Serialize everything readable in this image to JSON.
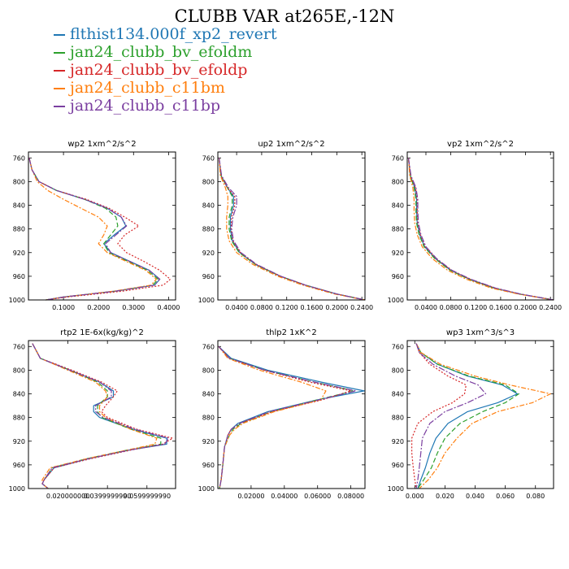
{
  "title": "CLUBB VAR at265E,-12N",
  "legend": [
    {
      "name": "flthist134.000f_xp2_revert",
      "color": "#1f77b4",
      "dash": ""
    },
    {
      "name": "jan24_clubb_bv_efoldm",
      "color": "#2ca02c",
      "dash": "6,3"
    },
    {
      "name": "jan24_clubb_bv_efoldp",
      "color": "#d62728",
      "dash": "2,2"
    },
    {
      "name": "jan24_clubb_c11bm",
      "color": "#ff7f0e",
      "dash": "6,2,2,2"
    },
    {
      "name": "jan24_clubb_c11bp",
      "color": "#7b3fa0",
      "dash": "8,2,2,2"
    }
  ],
  "chart_data": [
    {
      "type": "line",
      "title": "wp2   1xm^2/s^2",
      "xlim": [
        0,
        0.42
      ],
      "ylim": [
        750,
        1000
      ],
      "y_inverted": true,
      "xticks": [
        0.1,
        0.2,
        0.3,
        0.4
      ],
      "xtick_labels": [
        "0.1000",
        "0.2000",
        "0.3000",
        "0.4000"
      ],
      "yticks": [
        760,
        800,
        840,
        880,
        920,
        960,
        1000
      ],
      "y": [
        760,
        780,
        800,
        815,
        830,
        845,
        860,
        875,
        890,
        905,
        920,
        935,
        950,
        965,
        975,
        985,
        995,
        1000
      ],
      "series": [
        {
          "name": "flthist134.000f_xp2_revert",
          "values": [
            0.002,
            0.01,
            0.03,
            0.08,
            0.16,
            0.225,
            0.265,
            0.278,
            0.245,
            0.215,
            0.235,
            0.29,
            0.345,
            0.375,
            0.36,
            0.25,
            0.1,
            0.05
          ]
        },
        {
          "name": "jan24_clubb_bv_efoldm",
          "values": [
            0.002,
            0.01,
            0.03,
            0.08,
            0.16,
            0.22,
            0.25,
            0.255,
            0.235,
            0.215,
            0.23,
            0.285,
            0.34,
            0.37,
            0.355,
            0.25,
            0.1,
            0.05
          ]
        },
        {
          "name": "jan24_clubb_bv_efoldp",
          "values": [
            0.002,
            0.01,
            0.03,
            0.08,
            0.165,
            0.23,
            0.275,
            0.315,
            0.275,
            0.255,
            0.28,
            0.33,
            0.375,
            0.405,
            0.385,
            0.27,
            0.11,
            0.05
          ]
        },
        {
          "name": "jan24_clubb_c11bm",
          "values": [
            0.002,
            0.01,
            0.025,
            0.055,
            0.1,
            0.15,
            0.2,
            0.225,
            0.215,
            0.2,
            0.225,
            0.28,
            0.335,
            0.365,
            0.35,
            0.245,
            0.1,
            0.05
          ]
        },
        {
          "name": "jan24_clubb_c11bp",
          "values": [
            0.002,
            0.01,
            0.03,
            0.08,
            0.16,
            0.225,
            0.265,
            0.28,
            0.25,
            0.22,
            0.235,
            0.29,
            0.345,
            0.375,
            0.36,
            0.25,
            0.1,
            0.05
          ]
        }
      ]
    },
    {
      "type": "line",
      "title": "up2   1xm^2/s^2",
      "xlim": [
        0.01,
        0.245
      ],
      "ylim": [
        750,
        1000
      ],
      "y_inverted": true,
      "xticks": [
        0.04,
        0.08,
        0.12,
        0.16,
        0.2,
        0.24
      ],
      "xtick_labels": [
        "0.0400",
        "0.0800",
        "0.1200",
        "0.1600",
        "0.2000",
        "0.2400"
      ],
      "yticks": [
        760,
        800,
        840,
        880,
        920,
        960,
        1000
      ],
      "y": [
        760,
        790,
        810,
        825,
        840,
        860,
        880,
        900,
        920,
        940,
        960,
        975,
        990,
        1000
      ],
      "series": [
        {
          "name": "flthist134.000f_xp2_revert",
          "values": [
            0.012,
            0.015,
            0.025,
            0.035,
            0.035,
            0.03,
            0.03,
            0.033,
            0.045,
            0.07,
            0.11,
            0.15,
            0.2,
            0.245
          ]
        },
        {
          "name": "jan24_clubb_bv_efoldm",
          "values": [
            0.012,
            0.015,
            0.025,
            0.033,
            0.033,
            0.028,
            0.028,
            0.032,
            0.044,
            0.07,
            0.11,
            0.15,
            0.2,
            0.245
          ]
        },
        {
          "name": "jan24_clubb_bv_efoldp",
          "values": [
            0.012,
            0.015,
            0.025,
            0.037,
            0.037,
            0.032,
            0.031,
            0.034,
            0.046,
            0.071,
            0.11,
            0.15,
            0.2,
            0.245
          ]
        },
        {
          "name": "jan24_clubb_c11bm",
          "values": [
            0.012,
            0.014,
            0.022,
            0.026,
            0.026,
            0.024,
            0.024,
            0.028,
            0.04,
            0.066,
            0.106,
            0.146,
            0.196,
            0.245
          ]
        },
        {
          "name": "jan24_clubb_c11bp",
          "values": [
            0.012,
            0.016,
            0.027,
            0.04,
            0.04,
            0.034,
            0.032,
            0.035,
            0.047,
            0.072,
            0.111,
            0.15,
            0.2,
            0.245
          ]
        }
      ]
    },
    {
      "type": "line",
      "title": "vp2   1xm^2/s^2",
      "xlim": [
        0.01,
        0.245
      ],
      "ylim": [
        750,
        1000
      ],
      "y_inverted": true,
      "xticks": [
        0.04,
        0.08,
        0.12,
        0.16,
        0.2,
        0.24
      ],
      "xtick_labels": [
        "0.0400",
        "0.0800",
        "0.1200",
        "0.1600",
        "0.2000",
        "0.2400"
      ],
      "yticks": [
        760,
        800,
        840,
        880,
        920,
        960,
        1000
      ],
      "y": [
        760,
        790,
        810,
        830,
        850,
        870,
        890,
        910,
        930,
        950,
        965,
        980,
        990,
        1000
      ],
      "series": [
        {
          "name": "flthist134.000f_xp2_revert",
          "values": [
            0.012,
            0.015,
            0.022,
            0.025,
            0.025,
            0.026,
            0.03,
            0.038,
            0.055,
            0.08,
            0.11,
            0.15,
            0.19,
            0.245
          ]
        },
        {
          "name": "jan24_clubb_bv_efoldm",
          "values": [
            0.012,
            0.015,
            0.021,
            0.024,
            0.024,
            0.025,
            0.029,
            0.037,
            0.054,
            0.079,
            0.109,
            0.149,
            0.19,
            0.245
          ]
        },
        {
          "name": "jan24_clubb_bv_efoldp",
          "values": [
            0.012,
            0.015,
            0.023,
            0.026,
            0.026,
            0.027,
            0.031,
            0.039,
            0.056,
            0.081,
            0.111,
            0.151,
            0.19,
            0.245
          ]
        },
        {
          "name": "jan24_clubb_c11bm",
          "values": [
            0.012,
            0.014,
            0.019,
            0.021,
            0.021,
            0.022,
            0.026,
            0.034,
            0.05,
            0.075,
            0.105,
            0.145,
            0.188,
            0.245
          ]
        },
        {
          "name": "jan24_clubb_c11bp",
          "values": [
            0.012,
            0.016,
            0.024,
            0.027,
            0.027,
            0.028,
            0.032,
            0.04,
            0.057,
            0.082,
            0.112,
            0.152,
            0.192,
            0.245
          ]
        }
      ]
    },
    {
      "type": "line",
      "title": "rtp2   1E-6x(kg/kg)^2",
      "xlim": [
        0,
        0.0745
      ],
      "ylim": [
        750,
        1000
      ],
      "y_inverted": true,
      "xticks": [
        0.02,
        0.04,
        0.06
      ],
      "xtick_labels": [
        "0.020000000",
        "0.0399999990",
        "0.0599999990"
      ],
      "yticks": [
        760,
        800,
        840,
        880,
        920,
        960,
        1000
      ],
      "y": [
        755,
        780,
        800,
        820,
        835,
        845,
        860,
        870,
        880,
        900,
        915,
        925,
        935,
        950,
        965,
        985,
        992,
        1000
      ],
      "series": [
        {
          "name": "flthist134.000f_xp2_revert",
          "values": [
            0.002,
            0.006,
            0.021,
            0.036,
            0.043,
            0.043,
            0.033,
            0.033,
            0.036,
            0.053,
            0.07,
            0.07,
            0.051,
            0.03,
            0.013,
            0.008,
            0.007,
            0.01
          ]
        },
        {
          "name": "jan24_clubb_bv_efoldm",
          "values": [
            0.002,
            0.006,
            0.021,
            0.035,
            0.04,
            0.04,
            0.035,
            0.035,
            0.037,
            0.052,
            0.067,
            0.067,
            0.05,
            0.029,
            0.012,
            0.008,
            0.007,
            0.01
          ]
        },
        {
          "name": "jan24_clubb_bv_efoldp",
          "values": [
            0.002,
            0.006,
            0.022,
            0.037,
            0.045,
            0.043,
            0.039,
            0.037,
            0.04,
            0.055,
            0.073,
            0.068,
            0.052,
            0.031,
            0.013,
            0.008,
            0.007,
            0.01
          ]
        },
        {
          "name": "jan24_clubb_c11bm",
          "values": [
            0.002,
            0.006,
            0.02,
            0.034,
            0.039,
            0.04,
            0.036,
            0.036,
            0.039,
            0.052,
            0.065,
            0.064,
            0.05,
            0.029,
            0.011,
            0.007,
            0.007,
            0.01
          ]
        },
        {
          "name": "jan24_clubb_c11bp",
          "values": [
            0.002,
            0.006,
            0.021,
            0.036,
            0.042,
            0.042,
            0.034,
            0.034,
            0.038,
            0.054,
            0.071,
            0.069,
            0.051,
            0.03,
            0.012,
            0.008,
            0.007,
            0.01
          ]
        }
      ]
    },
    {
      "type": "line",
      "title": "thlp2   1xK^2",
      "xlim": [
        0,
        0.0885
      ],
      "ylim": [
        750,
        1000
      ],
      "y_inverted": true,
      "xticks": [
        0.02,
        0.04,
        0.06,
        0.08
      ],
      "xtick_labels": [
        "0.02000",
        "0.04000",
        "0.06000",
        "0.08000"
      ],
      "yticks": [
        760,
        800,
        840,
        880,
        920,
        960,
        1000
      ],
      "y": [
        760,
        780,
        800,
        820,
        835,
        850,
        870,
        890,
        900,
        910,
        930,
        960,
        985,
        1000
      ],
      "series": [
        {
          "name": "flthist134.000f_xp2_revert",
          "values": [
            0.0005,
            0.008,
            0.03,
            0.062,
            0.088,
            0.06,
            0.03,
            0.012,
            0.008,
            0.006,
            0.004,
            0.003,
            0.002,
            0.001
          ]
        },
        {
          "name": "jan24_clubb_bv_efoldm",
          "values": [
            0.0005,
            0.007,
            0.028,
            0.058,
            0.082,
            0.06,
            0.032,
            0.014,
            0.009,
            0.007,
            0.004,
            0.003,
            0.002,
            0.001
          ]
        },
        {
          "name": "jan24_clubb_bv_efoldp",
          "values": [
            0.0005,
            0.007,
            0.028,
            0.055,
            0.08,
            0.063,
            0.033,
            0.013,
            0.008,
            0.006,
            0.004,
            0.003,
            0.002,
            0.001
          ]
        },
        {
          "name": "jan24_clubb_c11bm",
          "values": [
            0.0005,
            0.006,
            0.025,
            0.05,
            0.065,
            0.062,
            0.034,
            0.015,
            0.01,
            0.007,
            0.004,
            0.003,
            0.002,
            0.001
          ]
        },
        {
          "name": "jan24_clubb_c11bp",
          "values": [
            0.0005,
            0.007,
            0.028,
            0.058,
            0.083,
            0.061,
            0.031,
            0.013,
            0.008,
            0.006,
            0.004,
            0.003,
            0.002,
            0.001
          ]
        }
      ]
    },
    {
      "type": "line",
      "title": "wp3   1xm^3/s^3",
      "xlim": [
        -0.005,
        0.092
      ],
      "ylim": [
        750,
        1000
      ],
      "y_inverted": true,
      "xticks": [
        0.0,
        0.02,
        0.04,
        0.06,
        0.08
      ],
      "xtick_labels": [
        "0.000",
        "0.020",
        "0.040",
        "0.060",
        "0.080"
      ],
      "yticks": [
        760,
        800,
        840,
        880,
        920,
        960,
        1000
      ],
      "y": [
        755,
        770,
        790,
        810,
        825,
        840,
        855,
        870,
        890,
        915,
        940,
        965,
        985,
        1000
      ],
      "series": [
        {
          "name": "flthist134.000f_xp2_revert",
          "values": [
            0.001,
            0.004,
            0.015,
            0.035,
            0.058,
            0.068,
            0.055,
            0.035,
            0.022,
            0.014,
            0.01,
            0.007,
            0.004,
            0.002
          ]
        },
        {
          "name": "jan24_clubb_bv_efoldm",
          "values": [
            0.001,
            0.004,
            0.015,
            0.036,
            0.06,
            0.069,
            0.06,
            0.045,
            0.03,
            0.02,
            0.015,
            0.011,
            0.006,
            0.002
          ]
        },
        {
          "name": "jan24_clubb_bv_efoldp",
          "values": [
            0.001,
            0.003,
            0.01,
            0.022,
            0.034,
            0.033,
            0.025,
            0.012,
            0.002,
            -0.002,
            -0.002,
            -0.001,
            0.0,
            0.001
          ]
        },
        {
          "name": "jan24_clubb_c11bm",
          "values": [
            0.001,
            0.004,
            0.017,
            0.04,
            0.063,
            0.09,
            0.078,
            0.055,
            0.038,
            0.028,
            0.02,
            0.015,
            0.009,
            0.003
          ]
        },
        {
          "name": "jan24_clubb_c11bp",
          "values": [
            0.001,
            0.003,
            0.012,
            0.027,
            0.042,
            0.047,
            0.035,
            0.02,
            0.01,
            0.005,
            0.004,
            0.003,
            0.002,
            0.001
          ]
        }
      ]
    }
  ]
}
